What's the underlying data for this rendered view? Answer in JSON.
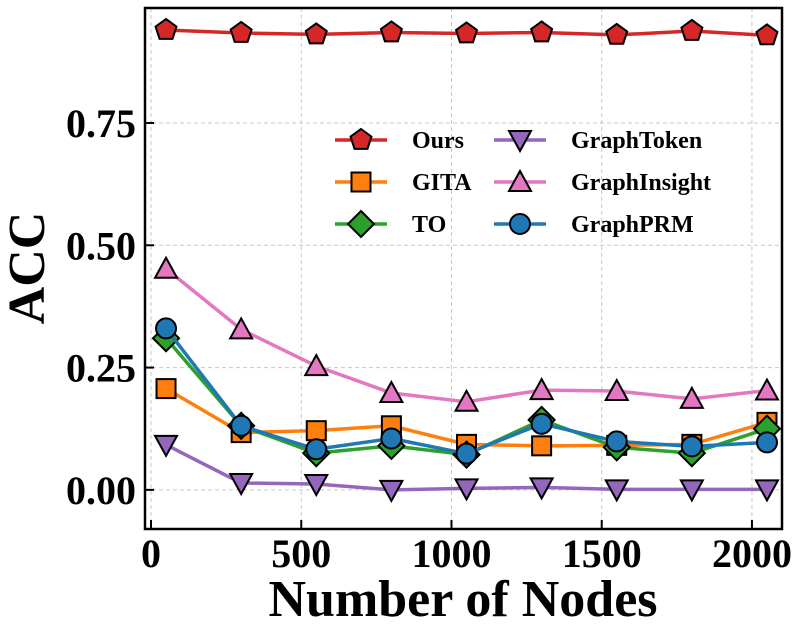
{
  "chart_data": {
    "type": "line",
    "title": "",
    "xlabel": "Number of Nodes",
    "ylabel": "ACC",
    "xlim": [
      -20,
      2100
    ],
    "ylim": [
      -0.08,
      0.985
    ],
    "xticks": [
      0,
      500,
      1000,
      1500,
      2000
    ],
    "xtick_labels": [
      "0",
      "500",
      "1000",
      "1500",
      "2000"
    ],
    "yticks": [
      0.0,
      0.25,
      0.5,
      0.75
    ],
    "ytick_labels": [
      "0.00",
      "0.25",
      "0.50",
      "0.75"
    ],
    "grid": true,
    "legend": {
      "position": "upper-right",
      "columns": 2
    },
    "x": [
      50,
      300,
      550,
      800,
      1050,
      1300,
      1550,
      1800,
      2050
    ],
    "series": [
      {
        "name": "Ours",
        "color": "#d62728",
        "marker": "pentagon",
        "values": [
          0.94,
          0.934,
          0.931,
          0.935,
          0.933,
          0.935,
          0.93,
          0.938,
          0.929
        ]
      },
      {
        "name": "GITA",
        "color": "#ff7f0e",
        "marker": "square",
        "values": [
          0.207,
          0.117,
          0.121,
          0.131,
          0.093,
          0.09,
          0.091,
          0.093,
          0.138
        ]
      },
      {
        "name": "TO",
        "color": "#2ca02c",
        "marker": "diamond",
        "values": [
          0.31,
          0.131,
          0.075,
          0.09,
          0.072,
          0.143,
          0.087,
          0.075,
          0.125
        ]
      },
      {
        "name": "GraphToken",
        "color": "#9467bd",
        "marker": "triangle-down",
        "values": [
          0.092,
          0.014,
          0.012,
          0.0,
          0.003,
          0.005,
          0.001,
          0.001,
          0.001
        ]
      },
      {
        "name": "GraphInsight",
        "color": "#e377c2",
        "marker": "triangle-up",
        "values": [
          0.452,
          0.328,
          0.253,
          0.198,
          0.18,
          0.204,
          0.202,
          0.186,
          0.203
        ]
      },
      {
        "name": "GraphPRM",
        "color": "#1f77b4",
        "marker": "circle",
        "values": [
          0.33,
          0.131,
          0.083,
          0.105,
          0.074,
          0.135,
          0.099,
          0.089,
          0.097
        ]
      }
    ]
  }
}
